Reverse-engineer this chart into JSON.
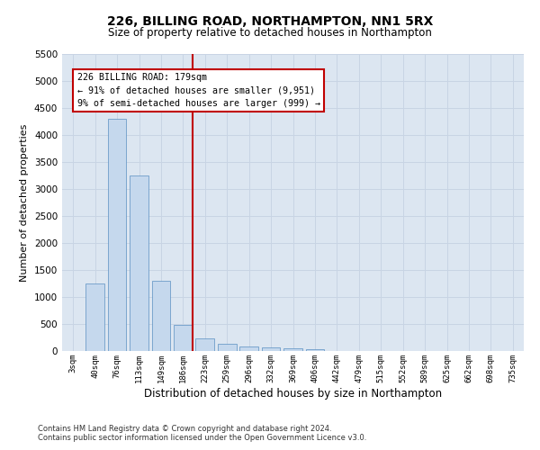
{
  "title": "226, BILLING ROAD, NORTHAMPTON, NN1 5RX",
  "subtitle": "Size of property relative to detached houses in Northampton",
  "xlabel": "Distribution of detached houses by size in Northampton",
  "ylabel": "Number of detached properties",
  "footnote1": "Contains HM Land Registry data © Crown copyright and database right 2024.",
  "footnote2": "Contains public sector information licensed under the Open Government Licence v3.0.",
  "annotation_line1": "226 BILLING ROAD: 179sqm",
  "annotation_line2": "← 91% of detached houses are smaller (9,951)",
  "annotation_line3": "9% of semi-detached houses are larger (999) →",
  "bar_color": "#c5d8ed",
  "bar_edge_color": "#5a8fc2",
  "vline_color": "#c00000",
  "grid_color": "#c8d4e4",
  "background_color": "#dce6f1",
  "ylim_max": 5500,
  "bin_labels": [
    "3sqm",
    "40sqm",
    "76sqm",
    "113sqm",
    "149sqm",
    "186sqm",
    "223sqm",
    "259sqm",
    "296sqm",
    "332sqm",
    "369sqm",
    "406sqm",
    "442sqm",
    "479sqm",
    "515sqm",
    "552sqm",
    "589sqm",
    "625sqm",
    "662sqm",
    "698sqm",
    "735sqm"
  ],
  "bin_values": [
    0,
    1250,
    4300,
    3250,
    1300,
    480,
    230,
    130,
    80,
    60,
    50,
    30,
    0,
    0,
    0,
    0,
    0,
    0,
    0,
    0,
    0
  ],
  "vline_x": 5.45
}
